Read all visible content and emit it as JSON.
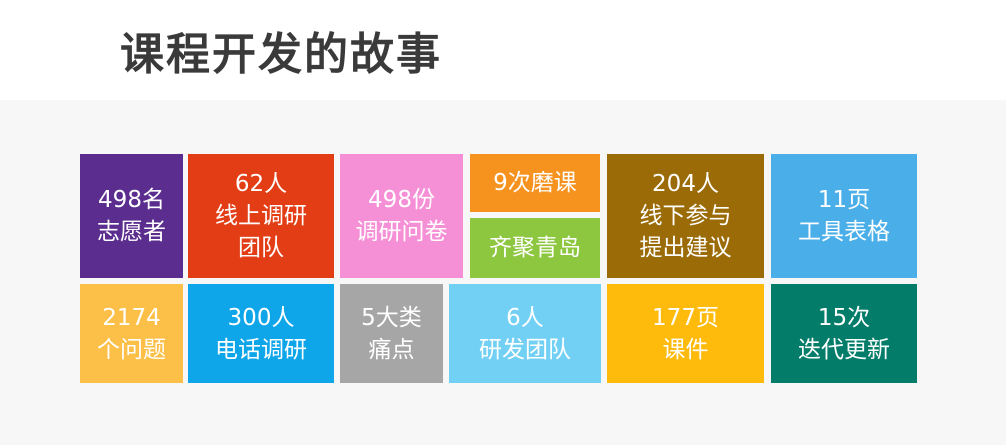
{
  "title": "课程开发的故事",
  "tiles": [
    {
      "id": "tile-volunteers",
      "lines": [
        "498名",
        "志愿者"
      ],
      "color": "#5b2d8e"
    },
    {
      "id": "tile-online-research",
      "lines": [
        "62人",
        "线上调研",
        "团队"
      ],
      "color": "#e23d15"
    },
    {
      "id": "tile-questionnaires",
      "lines": [
        "498份",
        "调研问卷"
      ],
      "color": "#f58fd6"
    },
    {
      "id": "tile-rehearsals",
      "lines": [
        "9次磨课"
      ],
      "color": "#f6921e"
    },
    {
      "id": "tile-qingdao",
      "lines": [
        "齐聚青岛"
      ],
      "color": "#8dc63f"
    },
    {
      "id": "tile-offline",
      "lines": [
        "204人",
        "线下参与",
        "提出建议"
      ],
      "color": "#9a6b07"
    },
    {
      "id": "tile-tool-tables",
      "lines": [
        "11页",
        "工具表格"
      ],
      "color": "#4aaee9"
    },
    {
      "id": "tile-questions",
      "lines": [
        "2174",
        "个问题"
      ],
      "color": "#fcbf47"
    },
    {
      "id": "tile-phone-research",
      "lines": [
        "300人",
        "电话调研"
      ],
      "color": "#0ea5e9"
    },
    {
      "id": "tile-pain-points",
      "lines": [
        "5大类",
        "痛点"
      ],
      "color": "#a6a6a6"
    },
    {
      "id": "tile-dev-team",
      "lines": [
        "6人",
        "研发团队"
      ],
      "color": "#72d0f5"
    },
    {
      "id": "tile-courseware",
      "lines": [
        "177页",
        "课件"
      ],
      "color": "#ffbb0c"
    },
    {
      "id": "tile-iterations",
      "lines": [
        "15次",
        "迭代更新"
      ],
      "color": "#037c6a"
    }
  ]
}
